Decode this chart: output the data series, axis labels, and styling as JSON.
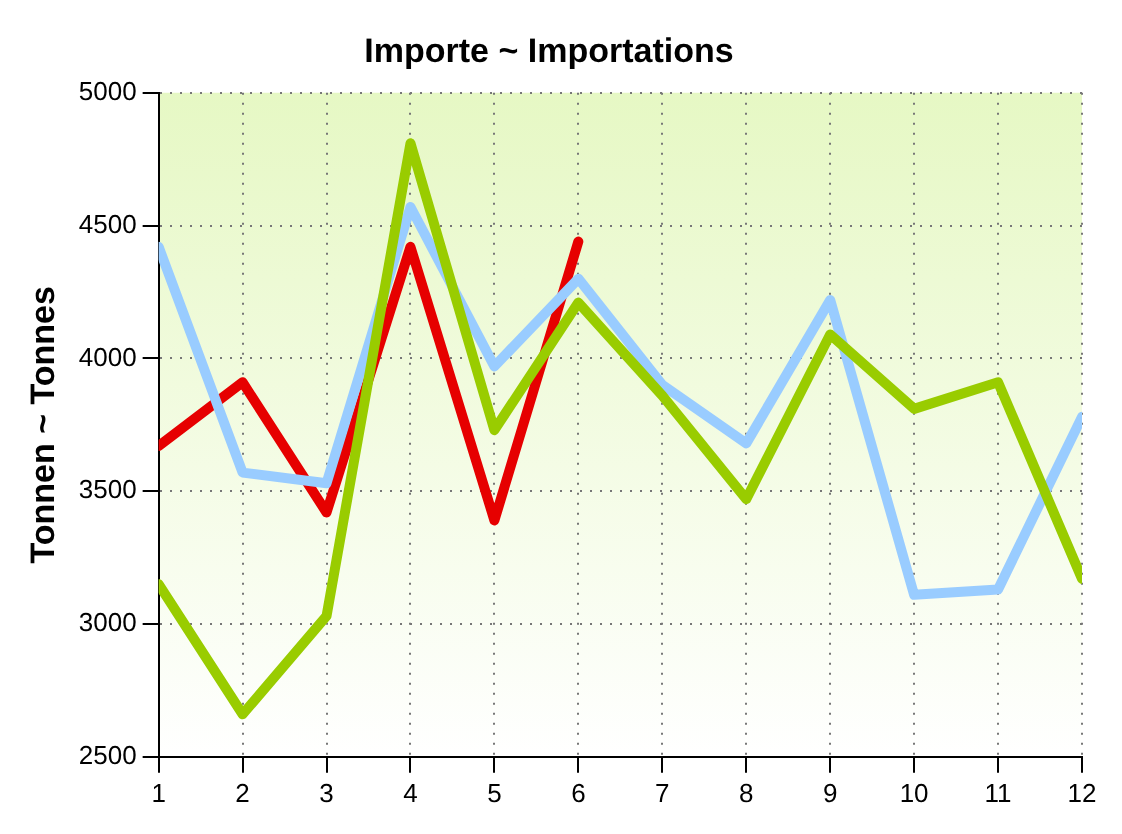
{
  "chart_data": {
    "type": "line",
    "title": "Importe ~ Importations",
    "ylabel": "Tonnen ~ Tonnes",
    "x": [
      1,
      2,
      3,
      4,
      5,
      6,
      7,
      8,
      9,
      10,
      11,
      12
    ],
    "xlim": [
      1,
      12
    ],
    "xticks": [
      1,
      2,
      3,
      4,
      5,
      6,
      7,
      8,
      9,
      10,
      11,
      12
    ],
    "ylim": [
      2500,
      5000
    ],
    "yticks": [
      2500,
      3000,
      3500,
      4000,
      4500,
      5000
    ],
    "grid": true,
    "marker": "none",
    "line_style": "solid",
    "series": [
      {
        "color": "#99cc00",
        "values": [
          3150,
          2660,
          3030,
          4810,
          3730,
          4210,
          3860,
          3470,
          4090,
          3810,
          3910,
          3170
        ]
      },
      {
        "color": "#99ccff",
        "values": [
          4420,
          3570,
          3530,
          4570,
          3970,
          4300,
          3900,
          3680,
          4220,
          3110,
          3130,
          3780
        ]
      },
      {
        "color": "#e60000",
        "values": [
          3670,
          3910,
          3420,
          4420,
          3390,
          4440,
          null,
          null,
          null,
          null,
          null,
          null
        ]
      }
    ]
  }
}
